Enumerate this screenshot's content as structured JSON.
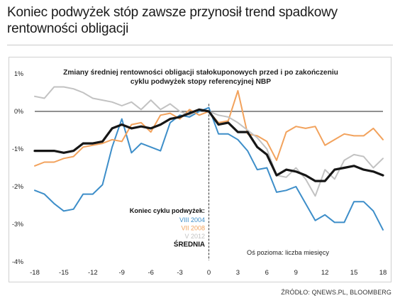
{
  "headline": "Koniec podwyżek stóp zawsze przynosił trend spadkowy rentowności obligacji",
  "source": "ŹRÓDŁO: QNEWS.PL, BLOOMBERG",
  "colors": {
    "VIII 2004": "#3d8ec9",
    "VII 2008": "#f2a25c",
    "V 2012": "#c2c2c2",
    "ŚREDNIA": "#161616",
    "zero_line": "#222222",
    "axis_text": "#222222"
  },
  "chart_data": {
    "type": "line",
    "title": "Zmiany średniej rentowności obligacji stałokuponowych przed i po zakończeniu cyklu podwyżek stopy referencyjnej NBP",
    "title_lines": [
      "Zmiany średniej rentowności obligacji stałokuponowych przed i po zakończeniu",
      "cyklu podwyżek stopy referencyjnej NBP"
    ],
    "xlabel": "Oś pozioma: liczba miesięcy",
    "ylabel": "",
    "xlim": [
      -18,
      18
    ],
    "ylim": [
      -4,
      1
    ],
    "x_ticks": [
      "-18",
      "-15",
      "-12",
      "-9",
      "-6",
      "-3",
      "0",
      "3",
      "6",
      "9",
      "12",
      "15",
      "18"
    ],
    "y_ticks": [
      "1%",
      "0%",
      "-1%",
      "-2%",
      "-3%",
      "-4%"
    ],
    "grid": false,
    "vertical_marker": {
      "x": 0,
      "style": "dashed"
    },
    "legend": {
      "title": "Koniec cyklu podwyżek:",
      "position": "center-bottom",
      "entries": [
        "VIII 2004",
        "VII 2008",
        "V 2012",
        "ŚREDNIA"
      ]
    },
    "x": [
      -18,
      -17,
      -16,
      -15,
      -14,
      -13,
      -12,
      -11,
      -10,
      -9,
      -8,
      -7,
      -6,
      -5,
      -4,
      -3,
      -2,
      -1,
      0,
      1,
      2,
      3,
      4,
      5,
      6,
      7,
      8,
      9,
      10,
      11,
      12,
      13,
      14,
      15,
      16,
      17,
      18
    ],
    "series": [
      {
        "name": "VIII 2004",
        "values": [
          -2.1,
          -2.2,
          -2.45,
          -2.65,
          -2.6,
          -2.2,
          -2.2,
          -1.95,
          -0.95,
          -0.2,
          -1.1,
          -0.85,
          -0.95,
          -1.05,
          -0.3,
          -0.1,
          -0.15,
          0.0,
          0.1,
          -0.6,
          -0.6,
          -0.75,
          -1.05,
          -1.55,
          -1.5,
          -2.15,
          -2.1,
          -2.0,
          -2.45,
          -2.9,
          -2.75,
          -2.95,
          -2.95,
          -2.4,
          -2.4,
          -2.65,
          -3.15
        ]
      },
      {
        "name": "VII 2008",
        "values": [
          -1.45,
          -1.35,
          -1.35,
          -1.25,
          -1.2,
          -0.95,
          -0.9,
          -0.85,
          -0.75,
          -0.8,
          -0.35,
          -0.3,
          -0.55,
          -0.1,
          -0.05,
          -0.2,
          0.05,
          -0.1,
          0.0,
          -0.3,
          -0.25,
          0.55,
          -0.6,
          -0.65,
          -0.8,
          -1.3,
          -0.55,
          -0.4,
          -0.45,
          -0.4,
          -0.9,
          -0.75,
          -0.6,
          -0.65,
          -0.65,
          -0.45,
          -0.75
        ]
      },
      {
        "name": "V 2012",
        "values": [
          0.4,
          0.35,
          0.65,
          0.65,
          0.6,
          0.5,
          0.35,
          0.3,
          0.25,
          0.15,
          0.25,
          0.05,
          0.3,
          0.05,
          0.2,
          0.0,
          -0.1,
          0.05,
          0.0,
          -0.1,
          -0.15,
          -0.3,
          -0.5,
          -0.7,
          -1.0,
          -1.7,
          -1.75,
          -1.5,
          -1.8,
          -2.25,
          -1.55,
          -1.8,
          -1.3,
          -1.15,
          -1.2,
          -1.5,
          -1.25
        ]
      },
      {
        "name": "ŚREDNIA",
        "values": [
          -1.05,
          -1.05,
          -1.05,
          -1.1,
          -1.05,
          -0.85,
          -0.85,
          -0.8,
          -0.45,
          -0.35,
          -0.45,
          -0.4,
          -0.45,
          -0.35,
          -0.2,
          -0.15,
          -0.05,
          0.05,
          0.0,
          -0.35,
          -0.3,
          -0.55,
          -0.55,
          -0.95,
          -1.15,
          -1.7,
          -1.55,
          -1.6,
          -1.7,
          -1.85,
          -1.85,
          -1.55,
          -1.5,
          -1.45,
          -1.55,
          -1.6,
          -1.7
        ]
      }
    ]
  }
}
